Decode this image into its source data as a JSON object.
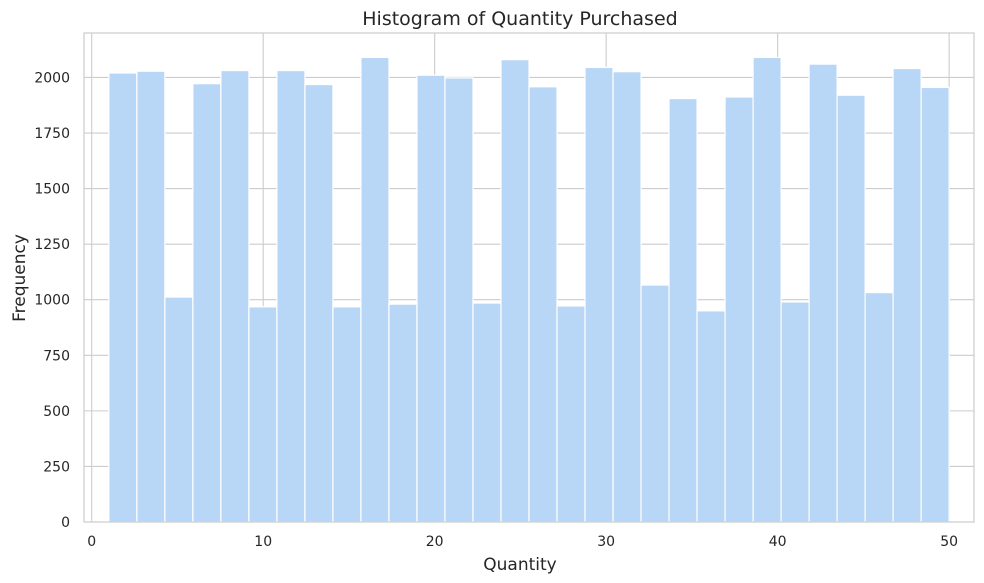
{
  "chart_data": {
    "type": "bar",
    "title": "Histogram of Quantity Purchased",
    "xlabel": "Quantity",
    "ylabel": "Frequency",
    "xlim": [
      -0.45,
      51.45
    ],
    "ylim": [
      0,
      2200
    ],
    "x_ticks": [
      0,
      10,
      20,
      30,
      40,
      50
    ],
    "y_ticks": [
      0,
      250,
      500,
      750,
      1000,
      1250,
      1500,
      1750,
      2000
    ],
    "grid": true,
    "legend": "none",
    "bar_color": "#b8d6f5",
    "bin_start": 1,
    "bin_end": 50,
    "bins": 30,
    "values": [
      2020,
      2028,
      1012,
      1972,
      2031,
      968,
      2031,
      1968,
      968,
      2090,
      980,
      2010,
      1998,
      985,
      2080,
      1958,
      972,
      2045,
      2026,
      1066,
      1905,
      950,
      1912,
      2090,
      990,
      2060,
      1920,
      1032,
      2040,
      1955
    ]
  }
}
